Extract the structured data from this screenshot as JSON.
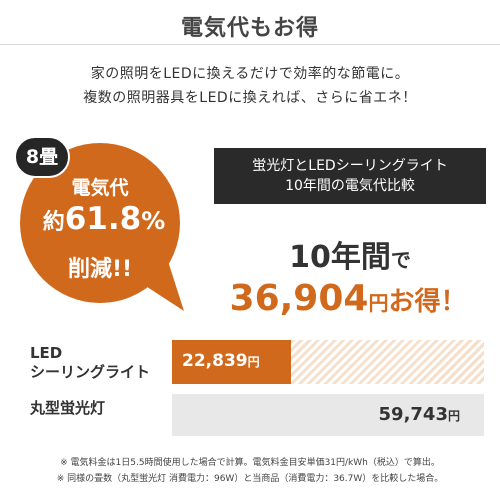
{
  "header": {
    "title": "電気代もお得"
  },
  "intro": {
    "line1": "家の照明をLEDに換えるだけで効率的な節電に。",
    "line2": "複数の照明器具をLEDに換えれば、さらに省エネ！"
  },
  "badge": {
    "size": "8畳"
  },
  "bubble": {
    "line1": "電気代",
    "prefix": "約",
    "percent_number": "61.8",
    "percent_sign": "%",
    "line3": "削減!!",
    "color": "#d1691c"
  },
  "compare_box": {
    "line1": "蛍光灯とLEDシーリングライト",
    "line2": "10年間の電気代比較"
  },
  "period": {
    "big": "10年間",
    "small": "で"
  },
  "savings": {
    "amount": "36,904",
    "yen": "円",
    "otoku": "お得！"
  },
  "chart_data": {
    "type": "bar",
    "orientation": "horizontal",
    "categories": [
      "LEDシーリングライト",
      "丸型蛍光灯"
    ],
    "values": [
      22839,
      59743
    ],
    "value_labels": [
      "22,839",
      "59,743"
    ],
    "unit": "円",
    "colors": [
      "#d1691c",
      "#e8e8e8"
    ]
  },
  "rows": {
    "led_line1": "LED",
    "led_line2": "シーリングライト",
    "ring_label": "丸型蛍光灯"
  },
  "notes": {
    "n1": "※ 電気料金は1日5.5時間使用した場合で計算。電気料金目安単価31円/kWh（税込）で算出。",
    "n2": "※ 同様の畳数（丸型蛍光灯 消費電力：96W）と当商品（消費電力：36.7W）を比較した場合。"
  }
}
